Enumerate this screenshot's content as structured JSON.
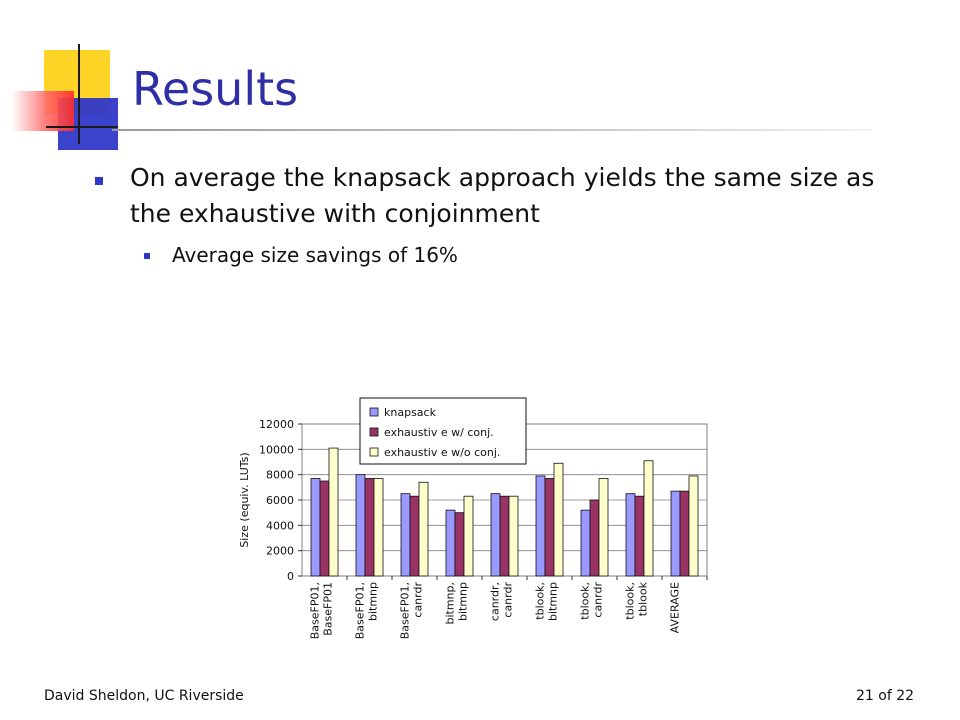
{
  "slide": {
    "title": "Results",
    "bullets": [
      {
        "text": "On average the knapsack approach yields the same size as the exhaustive with conjoinment"
      }
    ],
    "sub_bullets": [
      {
        "text": "Average size savings of 16%"
      }
    ],
    "footer": {
      "author": "David Sheldon, UC Riverside",
      "page": "21 of 22"
    }
  },
  "chart_data": {
    "type": "bar",
    "ylabel": "Size (equiv. LUTs)",
    "ylim": [
      0,
      12000
    ],
    "yticks": [
      0,
      2000,
      4000,
      6000,
      8000,
      10000,
      12000
    ],
    "legend_position": "top-center",
    "categories": [
      [
        "BaseFP01,",
        "BaseFP01"
      ],
      [
        "BaseFP01,",
        "bitmnp"
      ],
      [
        "BaseFP01,",
        "canrdr"
      ],
      [
        "bitmnp,",
        "bitmnp"
      ],
      [
        "canrdr,",
        "canrdr"
      ],
      [
        "tblook,",
        "bitmnp"
      ],
      [
        "tblook,",
        "canrdr"
      ],
      [
        "tblook,",
        "tblook"
      ],
      [
        "AVERAGE"
      ]
    ],
    "series": [
      {
        "name": "knapsack",
        "color": "#9999ff",
        "values": [
          7700,
          8000,
          6500,
          5200,
          6500,
          7900,
          5200,
          6500,
          6700
        ]
      },
      {
        "name": "exhaustiv e w/ conj.",
        "color": "#993366",
        "values": [
          7500,
          7700,
          6300,
          5000,
          6300,
          7700,
          6000,
          6300,
          6700
        ]
      },
      {
        "name": "exhaustiv e w/o conj.",
        "color": "#ffffcc",
        "values": [
          10100,
          7700,
          7400,
          6300,
          6300,
          8900,
          7700,
          9100,
          7900
        ]
      }
    ]
  }
}
